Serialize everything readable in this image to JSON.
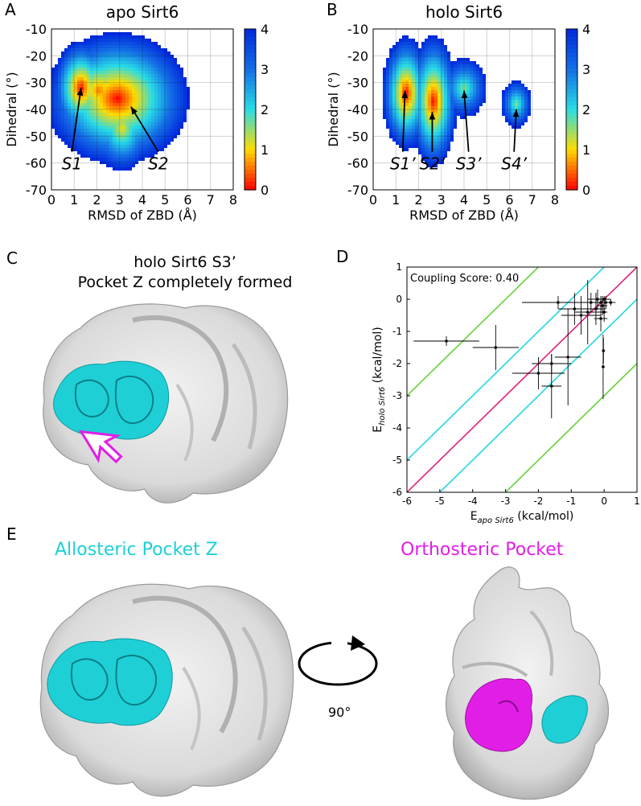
{
  "panel_labels": {
    "a": "A",
    "b": "B",
    "c": "C",
    "d": "D",
    "e": "E"
  },
  "chart_data": [
    {
      "type": "heatmap",
      "title": "apo Sirt6",
      "xlabel": "RMSD of ZBD (Å)",
      "ylabel": "Dihedral (°)",
      "xlim": [
        0,
        8
      ],
      "ylim": [
        -70,
        -10
      ],
      "xticks": [
        0,
        1,
        2,
        3,
        4,
        5,
        6,
        7,
        8
      ],
      "yticks": [
        -70,
        -60,
        -50,
        -40,
        -30,
        -20,
        -10
      ],
      "colorbar": {
        "range": [
          0,
          4
        ],
        "ticks": [
          0,
          1,
          2,
          3,
          4
        ]
      },
      "grid": true,
      "clusters": [
        {
          "x": 1.3,
          "y": -32,
          "rx": 0.35,
          "ry": 5,
          "peak": 0
        },
        {
          "x": 2.9,
          "y": -36,
          "rx": 0.9,
          "ry": 7,
          "peak": 0
        },
        {
          "x": 2.1,
          "y": -33,
          "rx": 0.6,
          "ry": 6,
          "peak": 0.5
        },
        {
          "x": 3.1,
          "y": -47,
          "rx": 0.5,
          "ry": 6,
          "peak": 1.0
        }
      ],
      "annotations": [
        {
          "text": "S1",
          "label_x": 0.9,
          "label_y": -60,
          "tip_x": 1.3,
          "tip_y": -32
        },
        {
          "text": "S2",
          "label_x": 4.7,
          "label_y": -60,
          "tip_x": 3.5,
          "tip_y": -39
        }
      ]
    },
    {
      "type": "heatmap",
      "title": "holo Sirt6",
      "xlabel": "RMSD of ZBD (Å)",
      "ylabel": "Dihedral (°)",
      "xlim": [
        0,
        8
      ],
      "ylim": [
        -70,
        -10
      ],
      "xticks": [
        0,
        1,
        2,
        3,
        4,
        5,
        6,
        7,
        8
      ],
      "yticks": [
        -70,
        -60,
        -50,
        -40,
        -30,
        -20,
        -10
      ],
      "colorbar": {
        "range": [
          0,
          4
        ],
        "ticks": [
          0,
          1,
          2,
          3,
          4
        ]
      },
      "grid": true,
      "clusters": [
        {
          "x": 1.45,
          "y": -34,
          "rx": 0.3,
          "ry": 6,
          "peak": 0
        },
        {
          "x": 2.65,
          "y": -37,
          "rx": 0.3,
          "ry": 7,
          "peak": 0
        },
        {
          "x": 4.0,
          "y": -32,
          "rx": 0.45,
          "ry": 5,
          "peak": 1.5
        },
        {
          "x": 6.3,
          "y": -38,
          "rx": 0.3,
          "ry": 4,
          "peak": 1.5
        }
      ],
      "annotations": [
        {
          "text": "S1’",
          "label_x": 1.3,
          "label_y": -60,
          "tip_x": 1.4,
          "tip_y": -33
        },
        {
          "text": "S2’",
          "label_x": 2.6,
          "label_y": -60,
          "tip_x": 2.6,
          "tip_y": -41
        },
        {
          "text": "S3’",
          "label_x": 4.2,
          "label_y": -60,
          "tip_x": 4.0,
          "tip_y": -33
        },
        {
          "text": "S4’",
          "label_x": 6.2,
          "label_y": -60,
          "tip_x": 6.3,
          "tip_y": -40
        }
      ]
    },
    {
      "type": "scatter",
      "title": "",
      "annotation": "Coupling Score: 0.40",
      "xlabel_main": "E",
      "xlabel_sub": "apo Sirt6",
      "xlabel_unit": " (kcal/mol)",
      "ylabel_main": "E",
      "ylabel_sub": "holo Sirt6",
      "ylabel_unit": " (kcal/mol)",
      "xlim": [
        -6,
        1
      ],
      "ylim": [
        -6,
        1
      ],
      "xticks": [
        -6,
        -5,
        -4,
        -3,
        -2,
        -1,
        0,
        1
      ],
      "yticks": [
        -6,
        -5,
        -4,
        -3,
        -2,
        -1,
        0,
        1
      ],
      "reference_lines": [
        {
          "offset": 0,
          "color": "#e0207a"
        },
        {
          "offset": 1,
          "color": "#22d6e6"
        },
        {
          "offset": -1,
          "color": "#22d6e6"
        },
        {
          "offset": 3,
          "color": "#66d13a"
        },
        {
          "offset": -3,
          "color": "#66d13a"
        }
      ],
      "points": [
        {
          "x": -4.8,
          "y": -1.3,
          "xerr": 1.0,
          "yerr": 0.15
        },
        {
          "x": -3.3,
          "y": -1.5,
          "xerr": 0.7,
          "yerr": 0.7
        },
        {
          "x": -2.0,
          "y": -2.3,
          "xerr": 0.8,
          "yerr": 0.5
        },
        {
          "x": -1.6,
          "y": -2.0,
          "xerr": 0.6,
          "yerr": 0.3
        },
        {
          "x": -1.6,
          "y": -2.7,
          "xerr": 0.3,
          "yerr": 1.0
        },
        {
          "x": -1.1,
          "y": -1.8,
          "xerr": 0.4,
          "yerr": 1.5
        },
        {
          "x": -1.4,
          "y": -0.1,
          "xerr": 1.1,
          "yerr": 0.2
        },
        {
          "x": -0.9,
          "y": -0.3,
          "xerr": 0.5,
          "yerr": 0.5
        },
        {
          "x": -0.7,
          "y": -0.5,
          "xerr": 0.6,
          "yerr": 0.6
        },
        {
          "x": -0.5,
          "y": -0.4,
          "xerr": 0.4,
          "yerr": 1.0
        },
        {
          "x": -0.4,
          "y": -0.1,
          "xerr": 0.4,
          "yerr": 0.3
        },
        {
          "x": -0.2,
          "y": 0.0,
          "xerr": 0.3,
          "yerr": 0.3
        },
        {
          "x": -0.1,
          "y": -0.1,
          "xerr": 0.2,
          "yerr": 0.2
        },
        {
          "x": 0.0,
          "y": 0.0,
          "xerr": 0.2,
          "yerr": 0.1
        },
        {
          "x": -0.05,
          "y": -0.2,
          "xerr": 0.15,
          "yerr": 0.3
        },
        {
          "x": 0.05,
          "y": -0.1,
          "xerr": 0.2,
          "yerr": 0.2
        },
        {
          "x": 0.0,
          "y": -0.4,
          "xerr": 0.1,
          "yerr": 0.3
        },
        {
          "x": -0.1,
          "y": -0.6,
          "xerr": 0.2,
          "yerr": 0.4
        },
        {
          "x": -0.03,
          "y": -2.1,
          "xerr": 0.05,
          "yerr": 1.0
        },
        {
          "x": -0.02,
          "y": -1.6,
          "xerr": 0.05,
          "yerr": 0.4
        },
        {
          "x": 0.2,
          "y": -0.1,
          "xerr": 0.15,
          "yerr": 0.1
        },
        {
          "x": -0.25,
          "y": -0.3,
          "xerr": 0.3,
          "yerr": 0.5
        }
      ]
    }
  ],
  "panel_c": {
    "title_line1": "holo Sirt6 S3’",
    "title_line2": "Pocket Z completely formed"
  },
  "panel_e": {
    "left_label": "Allosteric Pocket Z",
    "right_label": "Orthosteric Pocket",
    "rotation_label": "90°"
  },
  "colors": {
    "cyan": "#1ecfd6",
    "magenta": "#e11ee6",
    "surface": "#e3e3e3",
    "surface_shadow": "#a9a9a9"
  }
}
